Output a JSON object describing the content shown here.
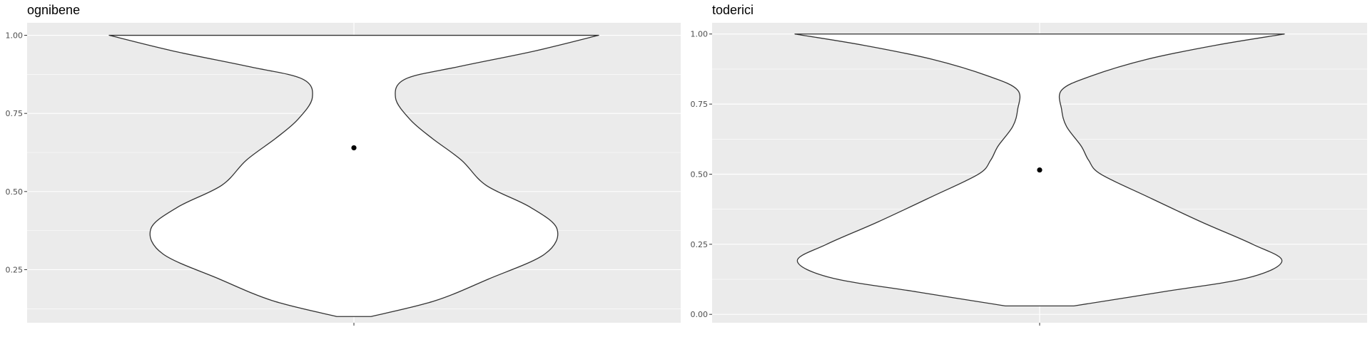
{
  "colors": {
    "panel_background": "#ebebeb",
    "gridline": "#ffffff",
    "violin_fill": "#ffffff",
    "violin_outline": "#333333",
    "point": "#000000",
    "tick_text": "#4d4d4d"
  },
  "chart_data": [
    {
      "type": "violin",
      "title": "ognibene",
      "xlabel": "",
      "ylabel": "",
      "ylim": [
        0.08,
        1.04
      ],
      "y_ticks": [
        0.25,
        0.5,
        0.75,
        1.0
      ],
      "y_tick_labels": [
        "0.25",
        "0.50",
        "0.75",
        "1.00"
      ],
      "grid": true,
      "legend": "none",
      "violin_range": [
        0.1,
        1.0
      ],
      "density_profile": [
        [
          0.1,
          0.07
        ],
        [
          0.15,
          0.33
        ],
        [
          0.22,
          0.55
        ],
        [
          0.3,
          0.78
        ],
        [
          0.38,
          0.83
        ],
        [
          0.45,
          0.72
        ],
        [
          0.52,
          0.54
        ],
        [
          0.6,
          0.44
        ],
        [
          0.67,
          0.32
        ],
        [
          0.73,
          0.23
        ],
        [
          0.8,
          0.17
        ],
        [
          0.86,
          0.21
        ],
        [
          0.9,
          0.43
        ],
        [
          0.95,
          0.74
        ],
        [
          1.0,
          1.0
        ]
      ],
      "point_y": 0.64
    },
    {
      "type": "violin",
      "title": "toderici",
      "xlabel": "",
      "ylabel": "",
      "ylim": [
        -0.03,
        1.04
      ],
      "y_ticks": [
        0.0,
        0.25,
        0.5,
        0.75,
        1.0
      ],
      "y_tick_labels": [
        "0.00",
        "0.25",
        "0.50",
        "0.75",
        "1.00"
      ],
      "grid": true,
      "legend": "none",
      "violin_range": [
        0.03,
        1.0
      ],
      "density_profile": [
        [
          0.03,
          0.14
        ],
        [
          0.08,
          0.5
        ],
        [
          0.13,
          0.85
        ],
        [
          0.19,
          0.99
        ],
        [
          0.25,
          0.87
        ],
        [
          0.33,
          0.66
        ],
        [
          0.42,
          0.44
        ],
        [
          0.5,
          0.25
        ],
        [
          0.55,
          0.2
        ],
        [
          0.6,
          0.17
        ],
        [
          0.67,
          0.11
        ],
        [
          0.73,
          0.09
        ],
        [
          0.8,
          0.09
        ],
        [
          0.85,
          0.21
        ],
        [
          0.91,
          0.44
        ],
        [
          0.96,
          0.72
        ],
        [
          1.0,
          1.0
        ]
      ],
      "point_y": 0.515
    }
  ]
}
